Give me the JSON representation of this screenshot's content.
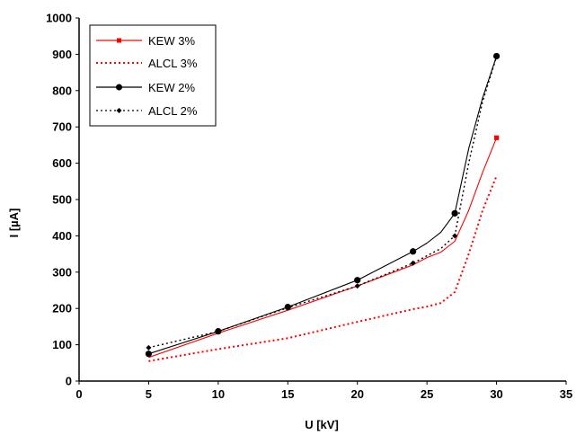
{
  "chart_data": {
    "type": "line",
    "xlabel": "U [kV]",
    "ylabel": "I [µA]",
    "xlim": [
      0,
      35
    ],
    "ylim": [
      0,
      1000
    ],
    "xticks": [
      "0",
      "5",
      "10",
      "15",
      "20",
      "25",
      "30",
      "35"
    ],
    "yticks": [
      "0",
      "100",
      "200",
      "300",
      "400",
      "500",
      "600",
      "700",
      "800",
      "900",
      "1000"
    ],
    "grid": false,
    "legend_position": "top-left",
    "series": [
      {
        "name": "KEW 3%",
        "color": "#ff0000",
        "line_style": "solid",
        "marker": "square",
        "markers_x": [
          30
        ],
        "markers_y": [
          670
        ],
        "x": [
          5,
          10,
          15,
          20,
          24,
          25,
          26,
          27,
          28,
          29,
          30
        ],
        "y": [
          65,
          132,
          195,
          262,
          320,
          340,
          355,
          385,
          470,
          575,
          670
        ]
      },
      {
        "name": "ALCL 3%",
        "color": "#ff0000",
        "line_style": "dotted",
        "marker": "none",
        "x": [
          5,
          10,
          15,
          20,
          24,
          25,
          26,
          27,
          28,
          29,
          30
        ],
        "y": [
          55,
          88,
          118,
          163,
          198,
          205,
          215,
          245,
          350,
          470,
          565
        ]
      },
      {
        "name": "KEW 2%",
        "color": "#000000",
        "line_style": "solid",
        "marker": "circle",
        "markers_x": [
          5,
          10,
          15,
          20,
          24,
          27,
          30
        ],
        "markers_y": [
          75,
          137,
          204,
          278,
          357,
          462,
          895
        ],
        "x": [
          5,
          10,
          15,
          20,
          24,
          25,
          26,
          27,
          28,
          29,
          30
        ],
        "y": [
          75,
          137,
          204,
          278,
          357,
          380,
          410,
          462,
          640,
          780,
          895
        ]
      },
      {
        "name": "ALCL 2%",
        "color": "#000000",
        "line_style": "dotted",
        "marker": "diamond",
        "markers_x": [
          5,
          10,
          15,
          20,
          24,
          27,
          30
        ],
        "markers_y": [
          92,
          137,
          202,
          262,
          325,
          400,
          893
        ],
        "x": [
          5,
          10,
          15,
          20,
          24,
          25,
          26,
          27,
          28,
          29,
          30
        ],
        "y": [
          92,
          137,
          202,
          262,
          325,
          345,
          365,
          400,
          600,
          770,
          893
        ]
      }
    ]
  }
}
